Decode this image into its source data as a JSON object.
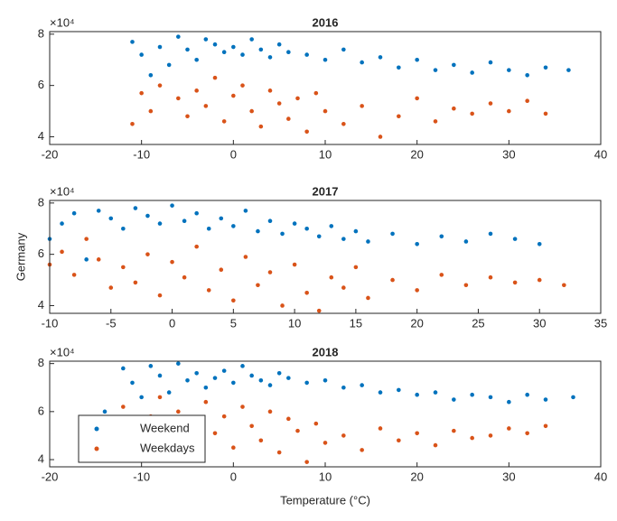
{
  "chart_data": [
    {
      "type": "scatter",
      "title": "2016",
      "y_scale_label": "×10⁴",
      "xlim": [
        -20,
        40
      ],
      "xticks": [
        -20,
        -10,
        0,
        10,
        20,
        30,
        40
      ],
      "ylim": [
        37000,
        81000
      ],
      "yticks": [
        {
          "value": 40000,
          "label": "4"
        },
        {
          "value": 60000,
          "label": "6"
        },
        {
          "value": 80000,
          "label": "8"
        }
      ],
      "series": [
        {
          "name": "Weekend",
          "color": "#0072bd",
          "x": [
            -11,
            -10,
            -9,
            -8,
            -7,
            -6,
            -5,
            -4,
            -3,
            -2,
            -1,
            0,
            1,
            2,
            3,
            4,
            5,
            6,
            8,
            10,
            12,
            14,
            16,
            18,
            20,
            22,
            24,
            26,
            28,
            30,
            32,
            34,
            36.5
          ],
          "values": [
            77000,
            72000,
            64000,
            75000,
            68000,
            79000,
            74000,
            70000,
            78000,
            76000,
            73000,
            75000,
            72000,
            78000,
            74000,
            71000,
            76000,
            73000,
            72000,
            70000,
            74000,
            69000,
            71000,
            67000,
            70000,
            66000,
            68000,
            65000,
            69000,
            66000,
            64000,
            67000,
            66000
          ]
        },
        {
          "name": "Weekdays",
          "color": "#d95319",
          "x": [
            -11,
            -10,
            -9,
            -8,
            -6,
            -5,
            -4,
            -3,
            -2,
            -1,
            0,
            1,
            2,
            3,
            4,
            5,
            6,
            7,
            8,
            9,
            10,
            12,
            14,
            16,
            18,
            20,
            22,
            24,
            26,
            28,
            30,
            32,
            34
          ],
          "values": [
            45000,
            57000,
            50000,
            60000,
            55000,
            48000,
            58000,
            52000,
            63000,
            46000,
            56000,
            60000,
            50000,
            44000,
            58000,
            53000,
            47000,
            55000,
            42000,
            57000,
            50000,
            45000,
            52000,
            40000,
            48000,
            55000,
            46000,
            51000,
            49000,
            53000,
            50000,
            54000,
            49000
          ]
        }
      ]
    },
    {
      "type": "scatter",
      "title": "2017",
      "y_scale_label": "×10⁴",
      "ylabel": "Germany",
      "xlim": [
        -10,
        35
      ],
      "xticks": [
        -10,
        -5,
        0,
        5,
        10,
        15,
        20,
        25,
        30,
        35
      ],
      "ylim": [
        37000,
        81000
      ],
      "yticks": [
        {
          "value": 40000,
          "label": "4"
        },
        {
          "value": 60000,
          "label": "6"
        },
        {
          "value": 80000,
          "label": "8"
        }
      ],
      "series": [
        {
          "name": "Weekend",
          "color": "#0072bd",
          "x": [
            -10,
            -9,
            -8,
            -7,
            -6,
            -5,
            -4,
            -3,
            -2,
            -1,
            0,
            1,
            2,
            3,
            4,
            5,
            6,
            7,
            8,
            9,
            10,
            11,
            12,
            13,
            14,
            15,
            16,
            18,
            20,
            22,
            24,
            26,
            28,
            30
          ],
          "values": [
            66000,
            72000,
            76000,
            58000,
            77000,
            74000,
            70000,
            78000,
            75000,
            72000,
            79000,
            73000,
            76000,
            70000,
            74000,
            71000,
            77000,
            69000,
            73000,
            68000,
            72000,
            70000,
            67000,
            71000,
            66000,
            69000,
            65000,
            68000,
            64000,
            67000,
            65000,
            68000,
            66000,
            64000
          ]
        },
        {
          "name": "Weekdays",
          "color": "#d95319",
          "x": [
            -10,
            -9,
            -8,
            -7,
            -6,
            -5,
            -4,
            -3,
            -2,
            -1,
            0,
            1,
            2,
            3,
            4,
            5,
            6,
            7,
            8,
            9,
            10,
            11,
            12,
            13,
            14,
            15,
            16,
            18,
            20,
            22,
            24,
            26,
            28,
            30,
            32
          ],
          "values": [
            56000,
            61000,
            52000,
            66000,
            58000,
            47000,
            55000,
            49000,
            60000,
            44000,
            57000,
            51000,
            63000,
            46000,
            54000,
            42000,
            59000,
            48000,
            53000,
            40000,
            56000,
            45000,
            38000,
            51000,
            47000,
            55000,
            43000,
            50000,
            46000,
            52000,
            48000,
            51000,
            49000,
            50000,
            48000
          ]
        }
      ]
    },
    {
      "type": "scatter",
      "title": "2018",
      "y_scale_label": "×10⁴",
      "xlabel": "Temperature (°C)",
      "legend": "lower left",
      "xlim": [
        -20,
        40
      ],
      "xticks": [
        -20,
        -10,
        0,
        10,
        20,
        30,
        40
      ],
      "ylim": [
        37000,
        81000
      ],
      "yticks": [
        {
          "value": 40000,
          "label": "4"
        },
        {
          "value": 60000,
          "label": "6"
        },
        {
          "value": 80000,
          "label": "8"
        }
      ],
      "series": [
        {
          "name": "Weekend",
          "color": "#0072bd",
          "x": [
            -14,
            -12,
            -11,
            -10,
            -9,
            -8,
            -7,
            -6,
            -5,
            -4,
            -3,
            -2,
            -1,
            0,
            1,
            2,
            3,
            4,
            5,
            6,
            8,
            10,
            12,
            14,
            16,
            18,
            20,
            22,
            24,
            26,
            28,
            30,
            32,
            34,
            37
          ],
          "values": [
            60000,
            78000,
            72000,
            66000,
            79000,
            75000,
            68000,
            80000,
            73000,
            76000,
            70000,
            74000,
            77000,
            72000,
            79000,
            75000,
            73000,
            71000,
            76000,
            74000,
            72000,
            73000,
            70000,
            71000,
            68000,
            69000,
            67000,
            68000,
            65000,
            67000,
            66000,
            64000,
            67000,
            65000,
            66000
          ]
        },
        {
          "name": "Weekdays",
          "color": "#d95319",
          "x": [
            -13,
            -12,
            -10,
            -9,
            -8,
            -7,
            -6,
            -5,
            -4,
            -3,
            -2,
            -1,
            0,
            1,
            2,
            3,
            4,
            5,
            6,
            7,
            8,
            9,
            10,
            12,
            14,
            16,
            18,
            20,
            22,
            24,
            26,
            28,
            30,
            32,
            34
          ],
          "values": [
            55000,
            62000,
            50000,
            58000,
            66000,
            53000,
            60000,
            47000,
            56000,
            64000,
            51000,
            58000,
            45000,
            62000,
            54000,
            48000,
            60000,
            43000,
            57000,
            52000,
            39000,
            55000,
            47000,
            50000,
            44000,
            53000,
            48000,
            51000,
            46000,
            52000,
            49000,
            50000,
            53000,
            51000,
            54000
          ]
        }
      ]
    }
  ]
}
